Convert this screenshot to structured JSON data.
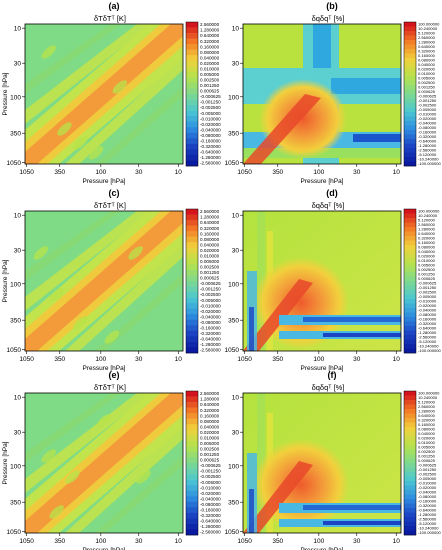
{
  "figure": {
    "ylabel": "Pressure [hPa]",
    "xlabel": "Pressure [hPa]",
    "x_ticks": [
      "1050",
      "350",
      "100",
      "30",
      "10"
    ],
    "y_ticks": [
      "10",
      "30",
      "100",
      "350",
      "1050"
    ]
  },
  "colors": {
    "low": "#0a1aa0",
    "mid": "#b6e24c",
    "high": "#d4141c",
    "background_field": "#9ee35a"
  },
  "chart_data": [
    {
      "type": "heatmap",
      "panel": "(a)",
      "title": "δTδTᵀ [K]",
      "xlabel": "Pressure [hPa]",
      "ylabel": "Pressure [hPa]",
      "x_ticks": [
        "1050",
        "350",
        "100",
        "30",
        "10"
      ],
      "y_ticks": [
        "10",
        "30",
        "100",
        "350",
        "1050"
      ],
      "colorbar": [
        "2.560000",
        "1.280000",
        "0.640000",
        "0.320000",
        "0.160000",
        "0.080000",
        "0.040000",
        "0.020000",
        "0.010000",
        "0.005000",
        "0.002500",
        "0.001250",
        "0.000625",
        "-0.000625",
        "-0.001250",
        "-0.002500",
        "-0.005000",
        "-0.010000",
        "-0.020000",
        "-0.040000",
        "-0.080000",
        "-0.160000",
        "-0.320000",
        "-0.640000",
        "-1.280000",
        "-2.560000"
      ]
    },
    {
      "type": "heatmap",
      "panel": "(b)",
      "title": "δqδqᵀ [%]",
      "xlabel": "Pressure [hPa]",
      "ylabel": "",
      "x_ticks": [
        "1050",
        "350",
        "100",
        "30",
        "10"
      ],
      "y_ticks": [
        "10",
        "30",
        "100",
        "350",
        "1050"
      ],
      "colorbar": [
        "100.000000",
        "10.240000",
        "5.120000",
        "2.560000",
        "1.280000",
        "0.640000",
        "0.320000",
        "0.160000",
        "0.080000",
        "0.040000",
        "0.020000",
        "0.010000",
        "0.005000",
        "0.002500",
        "0.001250",
        "0.000625",
        "-0.000625",
        "-0.001250",
        "-0.002500",
        "-0.005000",
        "-0.010000",
        "-0.020000",
        "-0.040000",
        "-0.080000",
        "-0.160000",
        "-0.320000",
        "-0.640000",
        "-1.280000",
        "-2.560000",
        "-5.120000",
        "-10.240000",
        "-100.000000"
      ]
    },
    {
      "type": "heatmap",
      "panel": "(c)",
      "title": "δTδTᵀ [K]",
      "xlabel": "Pressure [hPa]",
      "ylabel": "Pressure [hPa]",
      "x_ticks": [
        "1050",
        "350",
        "100",
        "30",
        "10"
      ],
      "y_ticks": [
        "10",
        "30",
        "100",
        "350",
        "1050"
      ],
      "colorbar": [
        "2.560000",
        "1.280000",
        "0.640000",
        "0.320000",
        "0.160000",
        "0.080000",
        "0.040000",
        "0.020000",
        "0.010000",
        "0.005000",
        "0.002500",
        "0.001250",
        "0.000625",
        "-0.000625",
        "-0.001250",
        "-0.002500",
        "-0.005000",
        "-0.010000",
        "-0.020000",
        "-0.040000",
        "-0.080000",
        "-0.160000",
        "-0.320000",
        "-0.640000",
        "-1.280000",
        "-2.560000"
      ]
    },
    {
      "type": "heatmap",
      "panel": "(d)",
      "title": "δqδqᵀ [%]",
      "xlabel": "Pressure [hPa]",
      "ylabel": "",
      "x_ticks": [
        "1050",
        "350",
        "100",
        "30",
        "10"
      ],
      "y_ticks": [
        "10",
        "30",
        "100",
        "350",
        "1050"
      ],
      "colorbar": [
        "100.000000",
        "10.240000",
        "5.120000",
        "2.560000",
        "1.280000",
        "0.640000",
        "0.320000",
        "0.160000",
        "0.080000",
        "0.040000",
        "0.020000",
        "0.010000",
        "0.005000",
        "0.002500",
        "0.001250",
        "0.000625",
        "-0.000625",
        "-0.001250",
        "-0.002500",
        "-0.005000",
        "-0.010000",
        "-0.020000",
        "-0.040000",
        "-0.080000",
        "-0.160000",
        "-0.320000",
        "-0.640000",
        "-1.280000",
        "-2.560000",
        "-5.120000",
        "-10.240000",
        "-100.000000"
      ]
    },
    {
      "type": "heatmap",
      "panel": "(e)",
      "title": "δTδTᵀ [K]",
      "xlabel": "Pressure [hPa]",
      "ylabel": "Pressure [hPa]",
      "x_ticks": [
        "1050",
        "350",
        "100",
        "30",
        "10"
      ],
      "y_ticks": [
        "10",
        "30",
        "100",
        "350",
        "1050"
      ],
      "colorbar": [
        "2.560000",
        "1.280000",
        "0.640000",
        "0.320000",
        "0.160000",
        "0.080000",
        "0.040000",
        "0.020000",
        "0.010000",
        "0.005000",
        "0.002500",
        "0.001250",
        "0.000625",
        "-0.000625",
        "-0.001250",
        "-0.002500",
        "-0.005000",
        "-0.010000",
        "-0.020000",
        "-0.040000",
        "-0.080000",
        "-0.160000",
        "-0.320000",
        "-0.640000",
        "-1.280000",
        "-2.560000"
      ]
    },
    {
      "type": "heatmap",
      "panel": "(f)",
      "title": "δqδqᵀ [%]",
      "xlabel": "Pressure [hPa]",
      "ylabel": "",
      "x_ticks": [
        "1050",
        "350",
        "100",
        "30",
        "10"
      ],
      "y_ticks": [
        "10",
        "30",
        "100",
        "350",
        "1050"
      ],
      "colorbar": [
        "100.000000",
        "10.240000",
        "5.120000",
        "2.560000",
        "1.280000",
        "0.640000",
        "0.320000",
        "0.160000",
        "0.080000",
        "0.040000",
        "0.020000",
        "0.010000",
        "0.005000",
        "0.002500",
        "0.001250",
        "0.000625",
        "-0.000625",
        "-0.001250",
        "-0.002500",
        "-0.005000",
        "-0.010000",
        "-0.020000",
        "-0.040000",
        "-0.080000",
        "-0.160000",
        "-0.320000",
        "-0.640000",
        "-1.280000",
        "-2.560000",
        "-5.120000",
        "-10.240000",
        "-100.000000"
      ]
    }
  ]
}
